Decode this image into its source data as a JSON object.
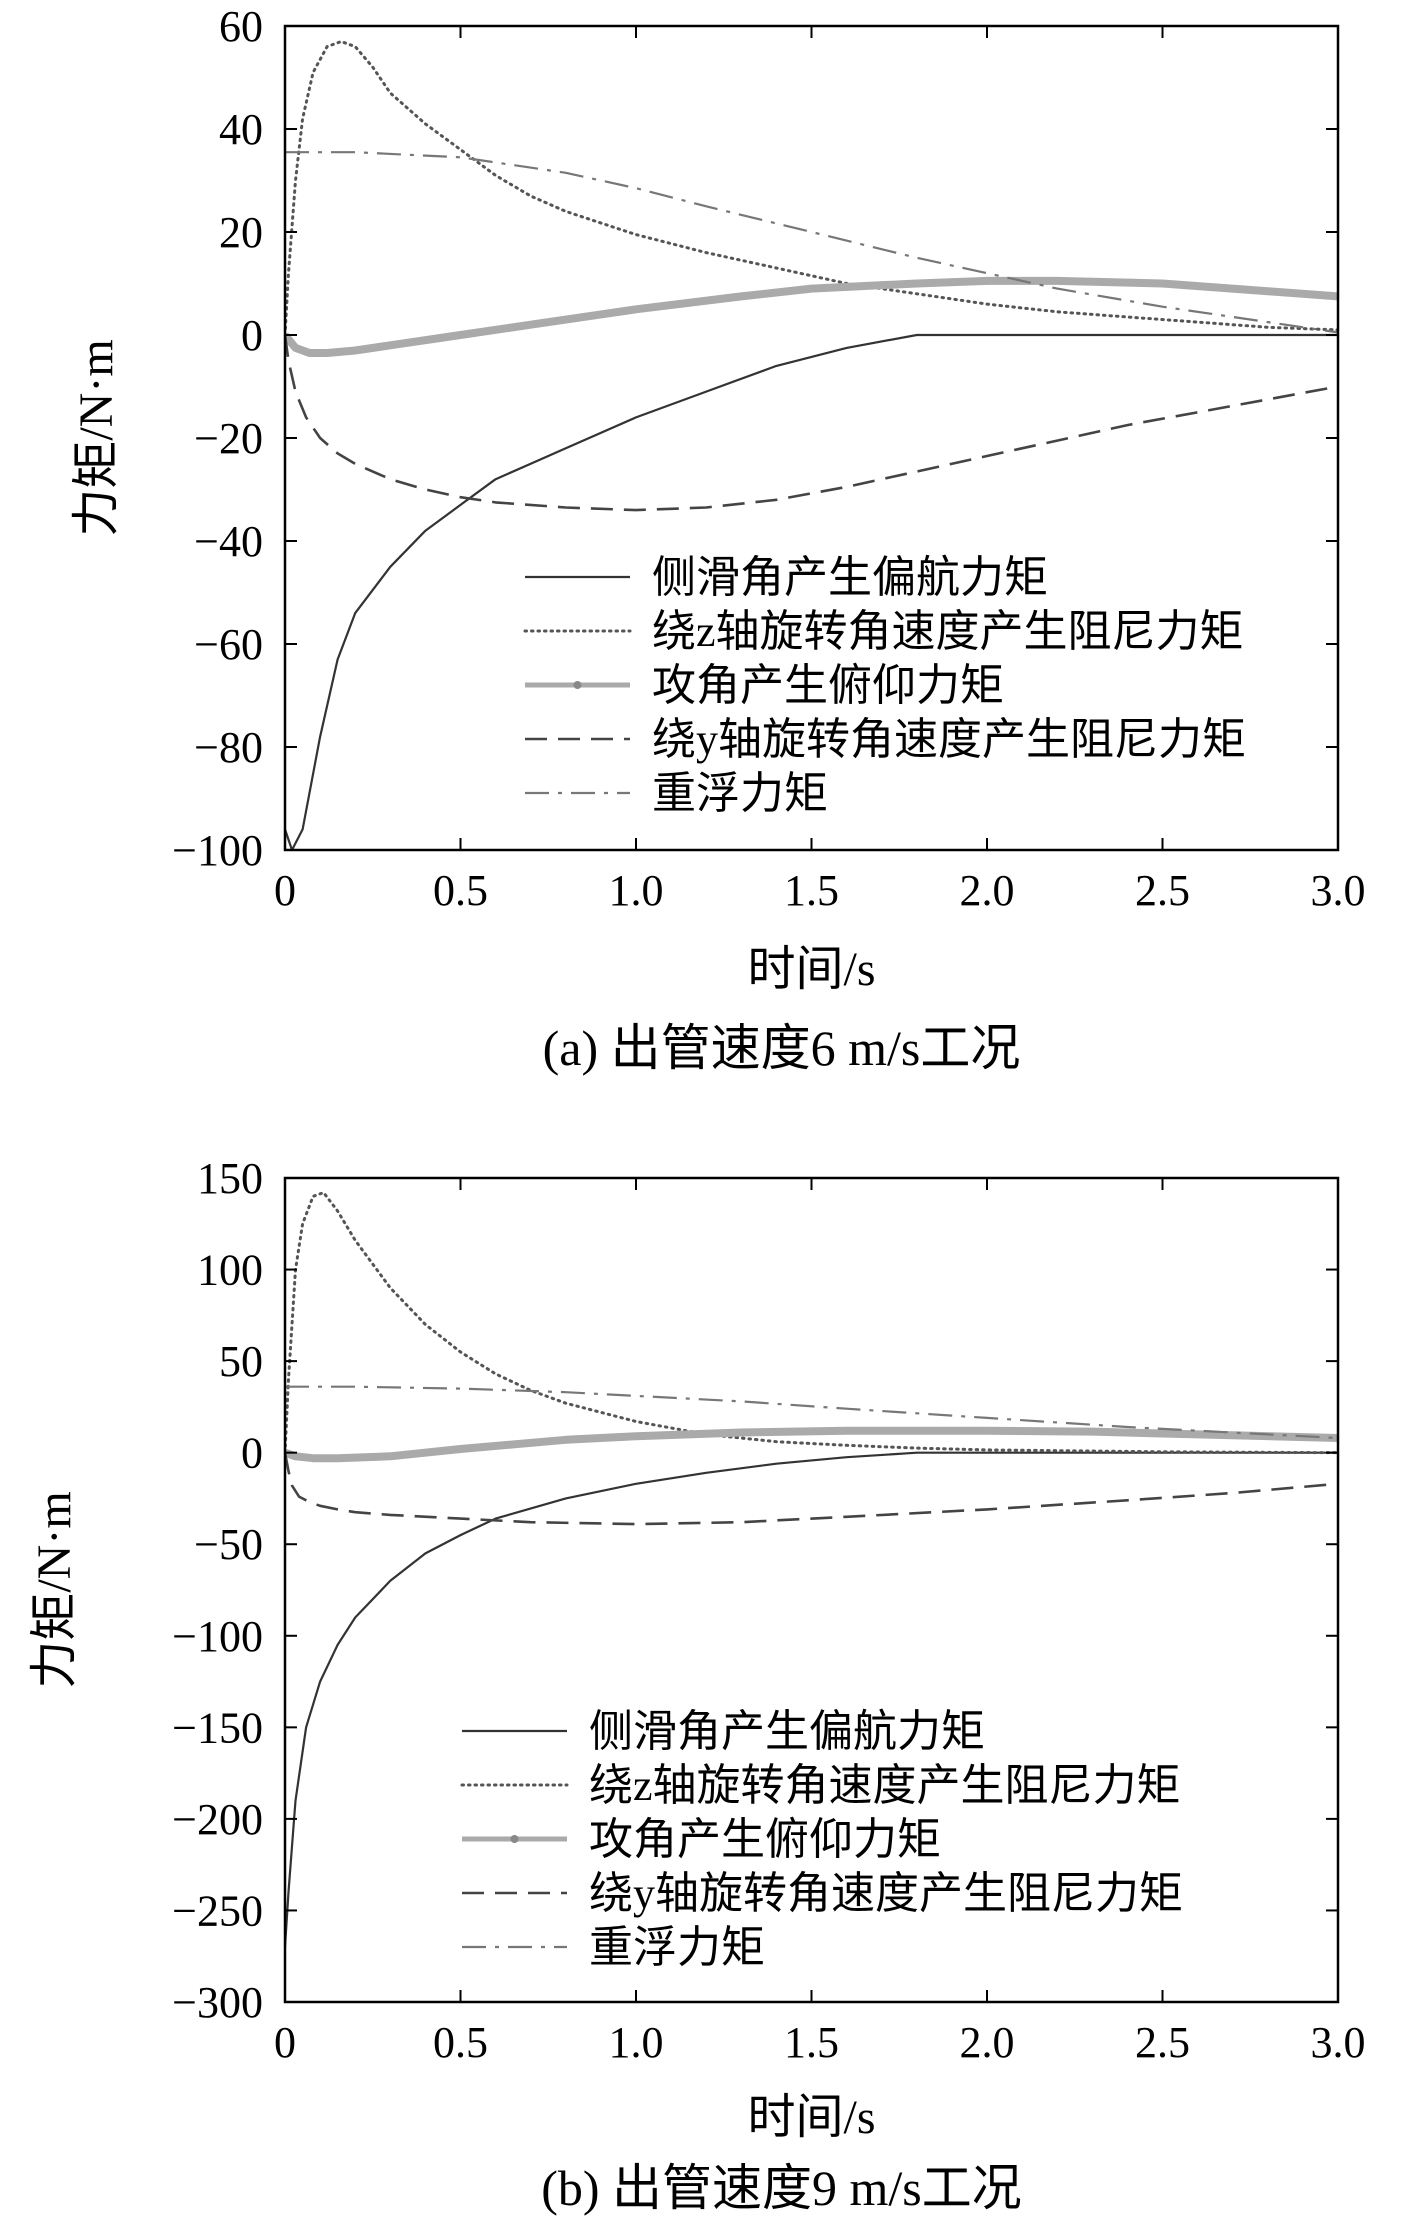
{
  "chart_data": [
    {
      "type": "line",
      "caption": "(a) 出管速度6 m/s工况",
      "xlabel": "时间/s",
      "ylabel": "力矩/N·m",
      "xlim": [
        0,
        3.0
      ],
      "ylim": [
        -100,
        60
      ],
      "xticks": [
        0,
        0.5,
        1.0,
        1.5,
        2.0,
        2.5,
        3.0
      ],
      "xtick_labels": [
        "0",
        "0.5",
        "1.0",
        "1.5",
        "2.0",
        "2.5",
        "3.0"
      ],
      "yticks": [
        60,
        40,
        20,
        0,
        -20,
        -40,
        -60,
        -80,
        -100
      ],
      "ytick_labels": [
        "60",
        "40",
        "20",
        "0",
        "−20",
        "−40",
        "−60",
        "−80",
        "−100"
      ],
      "grid": false,
      "legend_position": "lower-right",
      "series": [
        {
          "name": "侧滑角产生偏航力矩",
          "style": "solid",
          "color": "#333333",
          "x": [
            0,
            0.02,
            0.05,
            0.1,
            0.15,
            0.2,
            0.3,
            0.4,
            0.5,
            0.6,
            0.7,
            0.8,
            1.0,
            1.2,
            1.4,
            1.6,
            1.8,
            2.0,
            2.5,
            3.0
          ],
          "y": [
            -96,
            -100,
            -96,
            -78,
            -63,
            -54,
            -45,
            -38,
            -33,
            -28,
            -25,
            -22,
            -16,
            -11,
            -6,
            -2.5,
            0,
            0,
            0,
            0
          ]
        },
        {
          "name": "绕z轴旋转角速度产生阻尼力矩",
          "style": "dotted",
          "color": "#555555",
          "x": [
            0,
            0.01,
            0.03,
            0.05,
            0.08,
            0.12,
            0.16,
            0.2,
            0.25,
            0.3,
            0.4,
            0.5,
            0.6,
            0.7,
            0.8,
            1.0,
            1.2,
            1.4,
            1.6,
            1.8,
            2.0,
            2.2,
            2.4,
            2.6,
            2.8,
            3.0
          ],
          "y": [
            0,
            12,
            30,
            42,
            51,
            56,
            57,
            56,
            52,
            47,
            41,
            36,
            31,
            27,
            24,
            19.5,
            16,
            13,
            10,
            8,
            6,
            4.5,
            3.5,
            2.5,
            1.5,
            1
          ]
        },
        {
          "name": "攻角产生俯仰力矩",
          "style": "thick",
          "color": "#aaaaaa",
          "x": [
            0,
            0.03,
            0.07,
            0.12,
            0.2,
            0.3,
            0.5,
            0.7,
            1.0,
            1.3,
            1.5,
            1.8,
            2.0,
            2.2,
            2.5,
            2.8,
            3.0
          ],
          "y": [
            0,
            -2.5,
            -3.5,
            -3.5,
            -3,
            -2,
            0,
            2,
            5,
            7.5,
            9,
            10,
            10.5,
            10.5,
            10,
            8.5,
            7.5
          ]
        },
        {
          "name": "绕y轴旋转角速度产生阻尼力矩",
          "style": "dashed",
          "color": "#444444",
          "x": [
            0,
            0.01,
            0.03,
            0.06,
            0.1,
            0.15,
            0.2,
            0.3,
            0.4,
            0.5,
            0.6,
            0.8,
            1.0,
            1.2,
            1.4,
            1.6,
            1.8,
            2.0,
            2.2,
            2.4,
            2.6,
            2.8,
            3.0
          ],
          "y": [
            0,
            -5,
            -11,
            -16,
            -20,
            -23,
            -25,
            -28,
            -30,
            -31.5,
            -32.5,
            -33.5,
            -34,
            -33.5,
            -32,
            -29.5,
            -26.5,
            -23.5,
            -20.5,
            -17.5,
            -15,
            -12.5,
            -10
          ]
        },
        {
          "name": "重浮力矩",
          "style": "dashdot",
          "color": "#777777",
          "x": [
            0,
            0.2,
            0.5,
            0.8,
            1.0,
            1.2,
            1.5,
            1.8,
            2.0,
            2.2,
            2.5,
            2.8,
            3.0
          ],
          "y": [
            35.5,
            35.5,
            34.5,
            31.5,
            28.5,
            25,
            20,
            15,
            12,
            9,
            5.5,
            2.5,
            0.5
          ]
        }
      ]
    },
    {
      "type": "line",
      "caption": "(b) 出管速度9 m/s工况",
      "xlabel": "时间/s",
      "ylabel": "力矩/N·m",
      "xlim": [
        0,
        3.0
      ],
      "ylim": [
        -300,
        150
      ],
      "xticks": [
        0,
        0.5,
        1.0,
        1.5,
        2.0,
        2.5,
        3.0
      ],
      "xtick_labels": [
        "0",
        "0.5",
        "1.0",
        "1.5",
        "2.0",
        "2.5",
        "3.0"
      ],
      "yticks": [
        150,
        100,
        50,
        0,
        -50,
        -100,
        -150,
        -200,
        -250,
        -300
      ],
      "ytick_labels": [
        "150",
        "100",
        "50",
        "0",
        "−50",
        "−100",
        "−150",
        "−200",
        "−250",
        "−300"
      ],
      "grid": false,
      "legend_position": "lower-right",
      "series": [
        {
          "name": "侧滑角产生偏航力矩",
          "style": "solid",
          "color": "#333333",
          "x": [
            0,
            0.01,
            0.03,
            0.06,
            0.1,
            0.15,
            0.2,
            0.3,
            0.4,
            0.5,
            0.6,
            0.8,
            1.0,
            1.2,
            1.4,
            1.6,
            1.8,
            2.0,
            2.5,
            3.0
          ],
          "y": [
            -270,
            -240,
            -190,
            -150,
            -125,
            -105,
            -90,
            -70,
            -55,
            -45,
            -36,
            -25,
            -17,
            -11,
            -6,
            -2.5,
            0,
            0,
            0,
            0
          ]
        },
        {
          "name": "绕z轴旋转角速度产生阻尼力矩",
          "style": "dotted",
          "color": "#555555",
          "x": [
            0,
            0.01,
            0.03,
            0.05,
            0.08,
            0.11,
            0.15,
            0.2,
            0.3,
            0.4,
            0.5,
            0.6,
            0.7,
            0.8,
            1.0,
            1.2,
            1.4,
            1.6,
            1.8,
            2.0,
            2.5,
            3.0
          ],
          "y": [
            0,
            40,
            100,
            125,
            140,
            142,
            132,
            116,
            90,
            70,
            55,
            43,
            34,
            27,
            17,
            10,
            6,
            4,
            2.5,
            1.5,
            0.5,
            0
          ]
        },
        {
          "name": "攻角产生俯仰力矩",
          "style": "thick",
          "color": "#aaaaaa",
          "x": [
            0,
            0.03,
            0.08,
            0.15,
            0.3,
            0.5,
            0.8,
            1.0,
            1.3,
            1.6,
            2.0,
            2.3,
            2.6,
            3.0
          ],
          "y": [
            0,
            -2,
            -3,
            -3,
            -2,
            2,
            7,
            9,
            11,
            12,
            12,
            11.5,
            10,
            8
          ]
        },
        {
          "name": "绕y轴旋转角速度产生阻尼力矩",
          "style": "dashed",
          "color": "#444444",
          "x": [
            0,
            0.01,
            0.02,
            0.04,
            0.07,
            0.1,
            0.15,
            0.2,
            0.3,
            0.5,
            0.7,
            1.0,
            1.3,
            1.6,
            2.0,
            2.4,
            2.7,
            3.0
          ],
          "y": [
            0,
            -10,
            -18,
            -24,
            -27,
            -29,
            -31,
            -32.5,
            -34,
            -36,
            -38,
            -39,
            -38,
            -35,
            -31,
            -26,
            -22,
            -17
          ]
        },
        {
          "name": "重浮力矩",
          "style": "dashdot",
          "color": "#777777",
          "x": [
            0,
            0.2,
            0.5,
            0.8,
            1.0,
            1.3,
            1.6,
            2.0,
            2.4,
            2.8,
            3.0
          ],
          "y": [
            36,
            36,
            35,
            33,
            31,
            28,
            24,
            19,
            14,
            10,
            8
          ]
        }
      ]
    }
  ]
}
